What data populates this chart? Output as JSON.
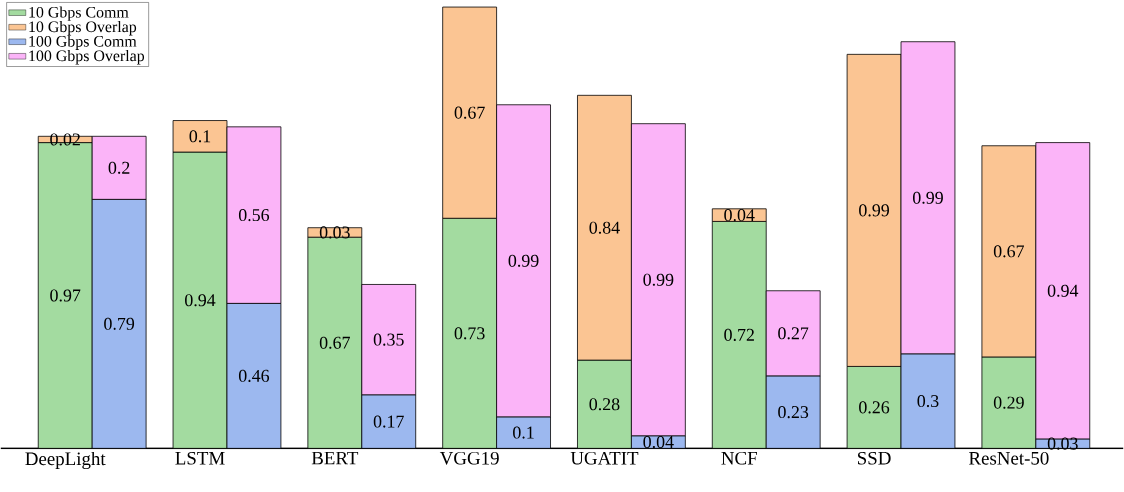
{
  "chart_data": {
    "type": "bar",
    "stacked": true,
    "data_labels": true,
    "legend": "top left",
    "categories": [
      "DeepLight",
      null,
      "LSTM",
      null,
      "BERT",
      null,
      "VGG19",
      null,
      "UGATIT",
      null,
      "NCF",
      null,
      "SSD",
      null,
      "ResNet-50",
      null
    ],
    "series": [
      {
        "name": "10 Gbps Comm",
        "color": "#a3dba0",
        "values": [
          0.97,
          null,
          0.94,
          null,
          0.67,
          null,
          0.73,
          null,
          0.28,
          null,
          0.72,
          null,
          0.26,
          null,
          0.29,
          null
        ]
      },
      {
        "name": "10 Gbps Overlap",
        "color": "#fbc593",
        "values": [
          0.02,
          null,
          0.1,
          null,
          0.03,
          null,
          0.67,
          null,
          0.84,
          null,
          0.04,
          null,
          0.99,
          null,
          0.67,
          null
        ]
      },
      {
        "name": "100 Gbps Comm",
        "color": "#9cb8ef",
        "values": [
          null,
          0.79,
          null,
          0.46,
          null,
          0.17,
          null,
          0.1,
          null,
          0.04,
          null,
          0.23,
          null,
          0.3,
          null,
          0.03
        ]
      },
      {
        "name": "100 Gbps Overlap",
        "color": "#fbb4f8",
        "values": [
          null,
          0.2,
          null,
          0.56,
          null,
          0.35,
          null,
          0.99,
          null,
          0.99,
          null,
          0.27,
          null,
          0.99,
          null,
          0.94
        ]
      }
    ]
  }
}
